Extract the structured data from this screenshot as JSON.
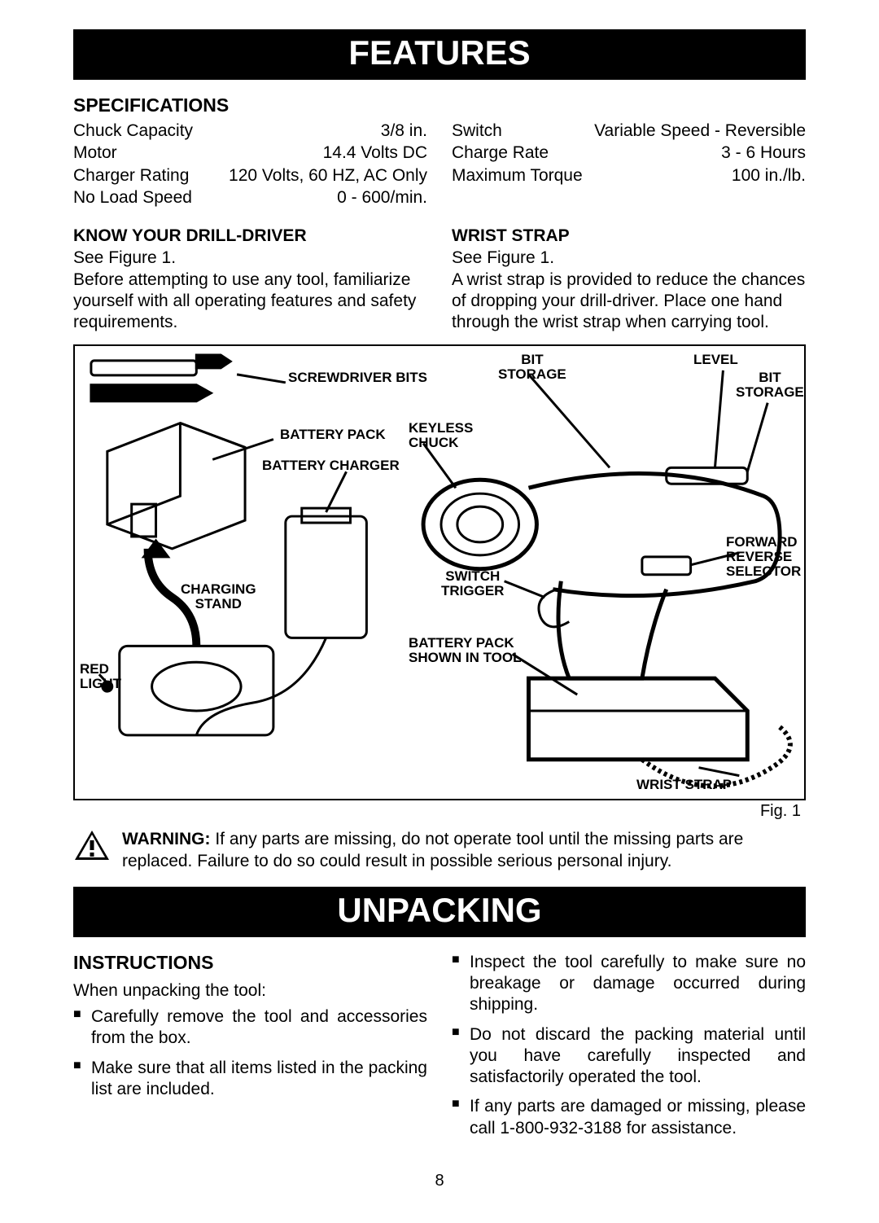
{
  "banners": {
    "features": "FEATURES",
    "unpacking": "UNPACKING"
  },
  "specifications": {
    "heading": "SPECIFICATIONS",
    "left": [
      {
        "label": "Chuck Capacity",
        "value": "3/8 in."
      },
      {
        "label": "Motor",
        "value": "14.4 Volts DC"
      },
      {
        "label": "Charger Rating",
        "value": "120 Volts, 60 HZ, AC Only"
      },
      {
        "label": "No Load Speed",
        "value": "0 - 600/min."
      }
    ],
    "right": [
      {
        "label": "Switch",
        "value": "Variable Speed - Reversible"
      },
      {
        "label": "Charge Rate",
        "value": "3 - 6 Hours"
      },
      {
        "label": "Maximum Torque",
        "value": "100 in./lb."
      }
    ]
  },
  "know": {
    "heading": "KNOW YOUR DRILL-DRIVER",
    "see": "See Figure 1.",
    "body": "Before attempting to use any tool, familiarize yourself with all operating features and safety requirements."
  },
  "wrist": {
    "heading": "WRIST STRAP",
    "see": "See Figure 1.",
    "body": "A wrist strap is provided to reduce the chances of dropping your drill-driver. Place one hand through the wrist strap when carrying tool."
  },
  "figure": {
    "caption": "Fig. 1",
    "labels": {
      "screwdriver_bits": "SCREWDRIVER BITS",
      "battery_pack": "BATTERY PACK",
      "battery_charger": "BATTERY CHARGER",
      "keyless_chuck": "KEYLESS\nCHUCK",
      "bit_storage_top": "BIT\nSTORAGE",
      "level": "LEVEL",
      "bit_storage_right": "BIT\nSTORAGE",
      "forward_reverse": "FORWARD\nREVERSE\nSELECTOR",
      "switch_trigger": "SWITCH\nTRIGGER",
      "battery_shown": "BATTERY PACK\nSHOWN IN TOOL",
      "charging_stand": "CHARGING\nSTAND",
      "red_light": "RED\nLIGHT",
      "wrist_strap": "WRIST STRAP"
    }
  },
  "warning": {
    "label": "WARNING:",
    "text": "If any parts are missing, do not operate tool until the missing parts are replaced. Failure to do so could result in possible serious personal injury."
  },
  "instructions": {
    "heading": "INSTRUCTIONS",
    "intro": "When unpacking the tool:",
    "left_items": [
      "Carefully remove the tool and accessories from the box.",
      "Make sure that all items listed in the packing list are included."
    ],
    "right_items": [
      "Inspect the tool carefully to make sure no breakage or damage occurred during shipping.",
      "Do not discard the packing material until you have carefully inspected and satisfactorily operated the tool.",
      "If any parts are damaged or missing, please call 1-800-932-3188 for assistance."
    ]
  },
  "page_number": "8"
}
